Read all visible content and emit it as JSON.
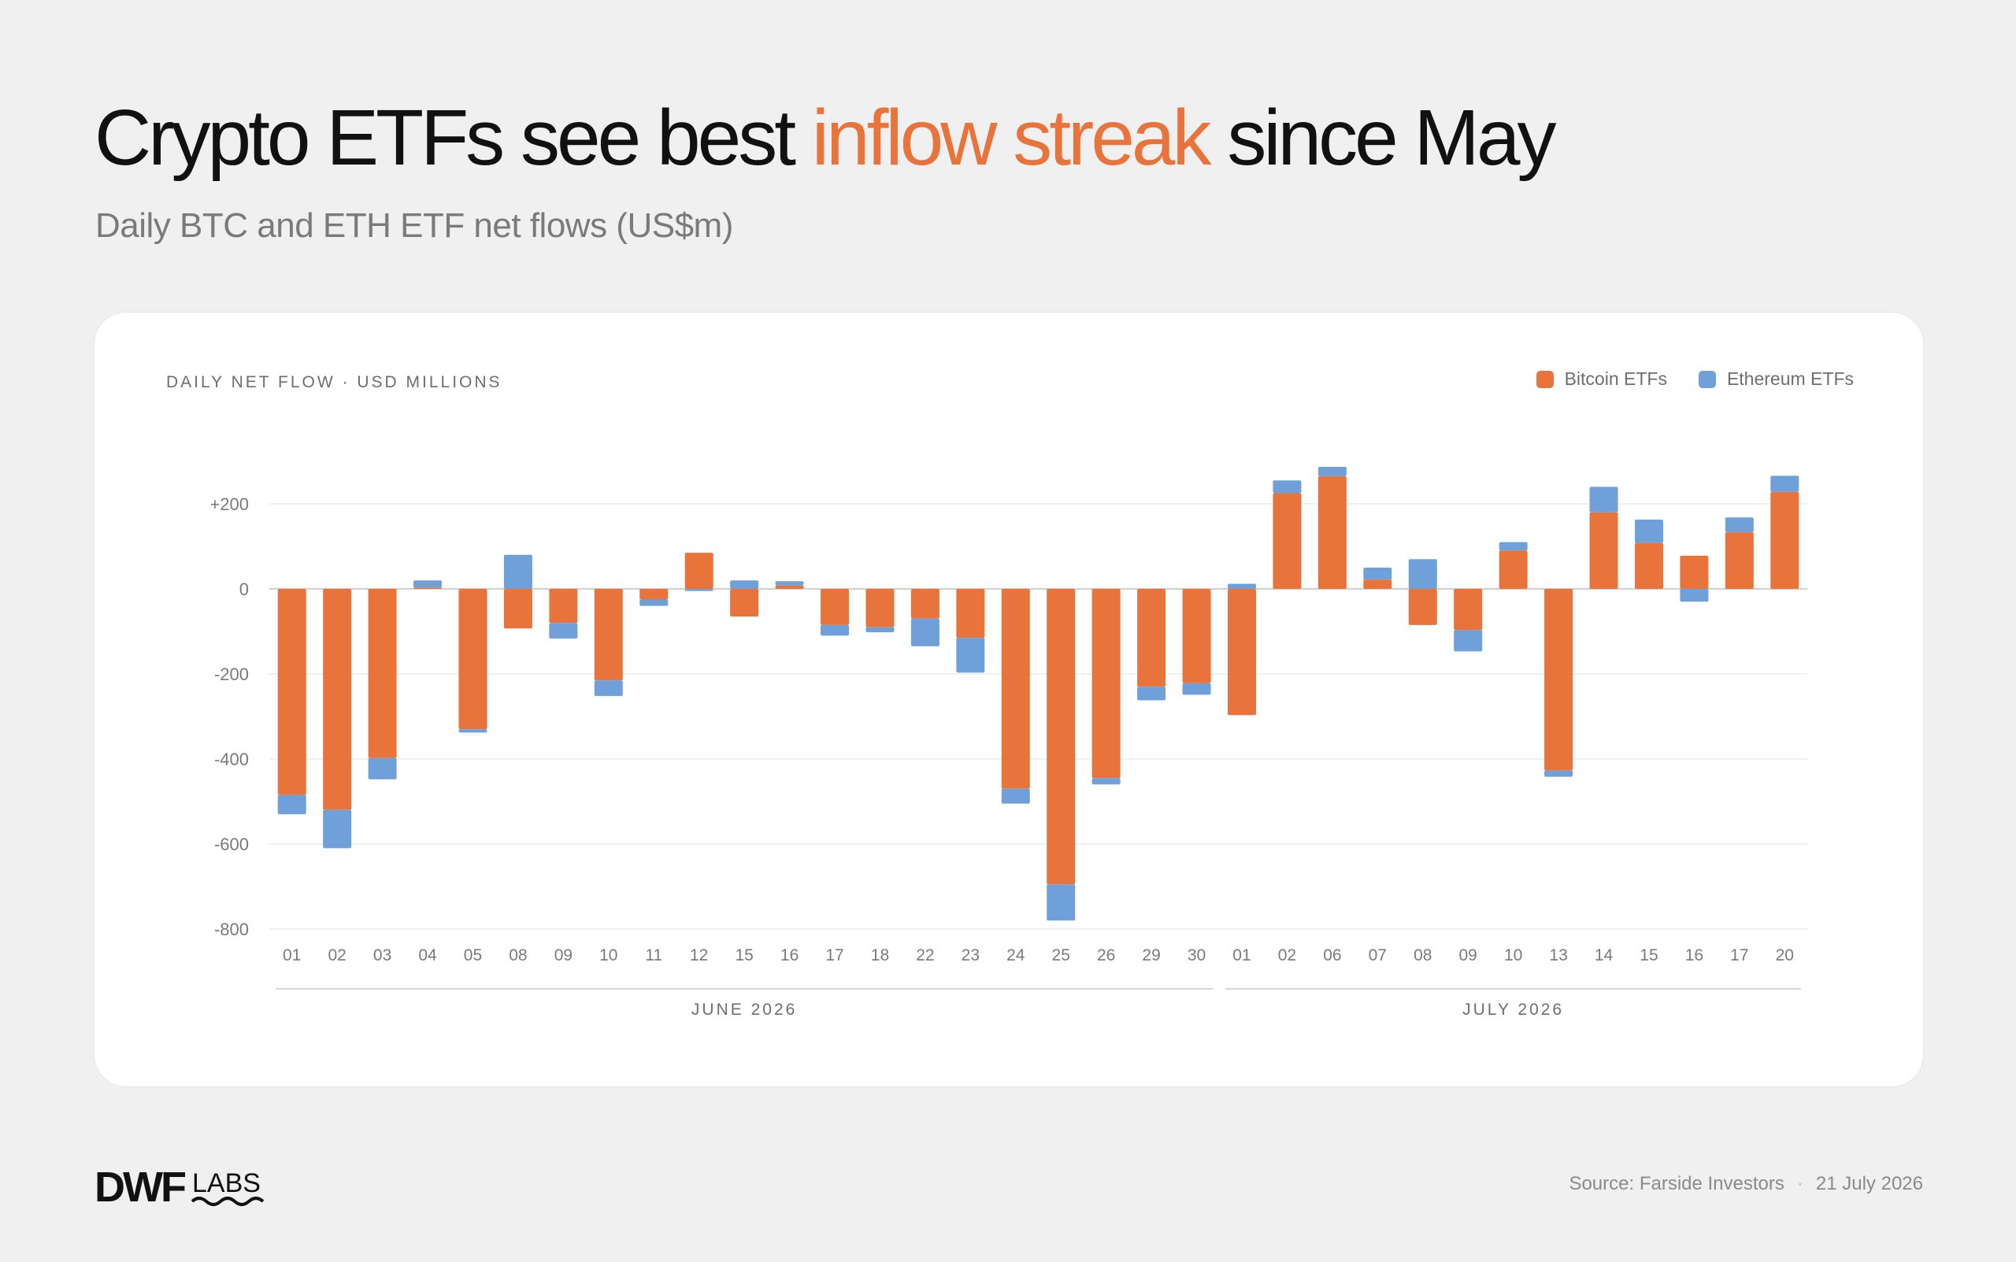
{
  "header": {
    "title_before": "Crypto ETFs see best ",
    "title_highlight": "inflow streak",
    "title_after": " since May",
    "subtitle": "Daily BTC and ETH ETF net flows (US$m)"
  },
  "colors": {
    "bitcoin": "#e8743b",
    "ethereum": "#6fa0da",
    "highlight": "#e8743b"
  },
  "chart_panel": {
    "label": "DAILY NET FLOW · USD MILLIONS"
  },
  "chart_data": {
    "type": "bar",
    "stacked": true,
    "categories": [
      "01",
      "02",
      "03",
      "04",
      "05",
      "08",
      "09",
      "10",
      "11",
      "12",
      "15",
      "16",
      "17",
      "18",
      "22",
      "23",
      "24",
      "25",
      "26",
      "29",
      "30",
      "01",
      "02",
      "06",
      "07",
      "08",
      "09",
      "10",
      "13",
      "14",
      "15",
      "16",
      "17",
      "20"
    ],
    "category_groups": [
      {
        "label": "JUNE 2026",
        "count": 21
      },
      {
        "label": "JULY 2026",
        "count": 13
      }
    ],
    "series": [
      {
        "name": "Bitcoin ETFs",
        "color": "#e8743b",
        "values": [
          -485,
          -520,
          -398,
          3,
          -330,
          -93,
          -80,
          -215,
          -25,
          85,
          -65,
          8,
          -85,
          -90,
          -70,
          -115,
          -470,
          -695,
          -445,
          -230,
          -222,
          -297,
          225,
          265,
          22,
          -85,
          -97,
          90,
          -427,
          180,
          108,
          78,
          133,
          228
        ]
      },
      {
        "name": "Ethereum ETFs",
        "color": "#6fa0da",
        "values": [
          -45,
          -90,
          -50,
          17,
          -8,
          80,
          -37,
          -37,
          -15,
          -5,
          20,
          10,
          -25,
          -12,
          -65,
          -82,
          -35,
          -85,
          -15,
          -32,
          -27,
          12,
          30,
          22,
          28,
          70,
          -50,
          20,
          -15,
          60,
          55,
          -30,
          35,
          38
        ]
      }
    ],
    "ylim": [
      -800,
      250
    ],
    "yticks": [
      -800,
      -600,
      -400,
      -200,
      0,
      200
    ],
    "ytick_labels": [
      "-800",
      "-600",
      "-400",
      "-200",
      "0",
      "+200"
    ],
    "grid": true,
    "legend_position": "top-right"
  },
  "footer": {
    "logo_text": "DWF",
    "logo_sub": "LABS",
    "source": "Source: Farside Investors",
    "separator": "·",
    "date": "21 July 2026"
  }
}
